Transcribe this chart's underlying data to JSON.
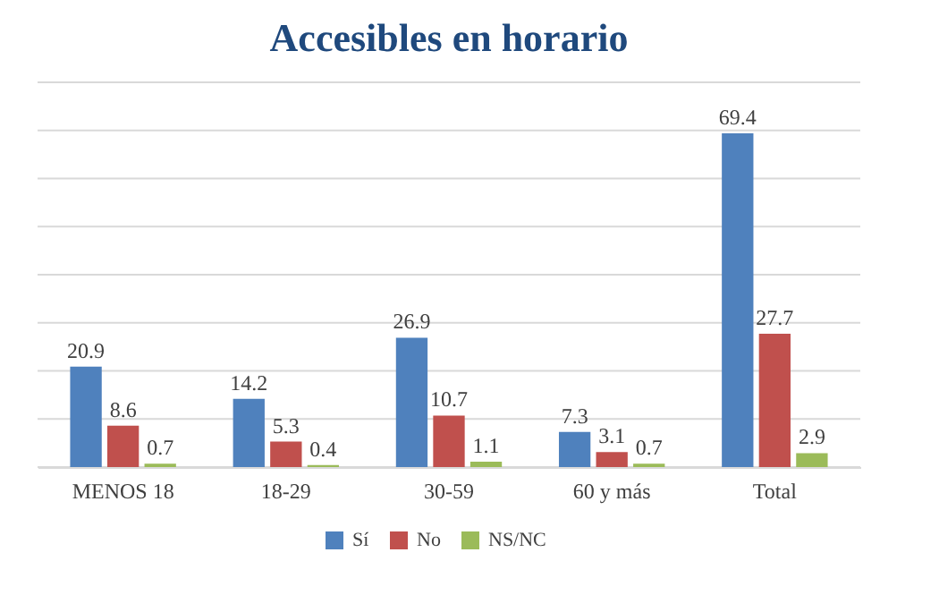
{
  "chart_data": {
    "type": "bar",
    "title": "Accesibles en horario",
    "categories": [
      "MENOS 18",
      "18-29",
      "30-59",
      "60 y más",
      "Total"
    ],
    "series": [
      {
        "name": "Sí",
        "color": "#4f81bd",
        "values": [
          20.9,
          14.2,
          26.9,
          7.3,
          69.4
        ]
      },
      {
        "name": "No",
        "color": "#c0504d",
        "values": [
          8.6,
          5.3,
          10.7,
          3.1,
          27.7
        ]
      },
      {
        "name": "NS/NC",
        "color": "#9bbb59",
        "values": [
          0.7,
          0.4,
          1.1,
          0.7,
          2.9
        ]
      }
    ],
    "ylim": [
      0,
      80
    ],
    "yticks": [
      0,
      {
        "value": 10,
        "label": null
      },
      {
        "value": 20,
        "label": null
      },
      {
        "value": 30,
        "label": null
      },
      {
        "value": 40,
        "label": null
      },
      {
        "value": 50,
        "label": null
      },
      {
        "value": 60,
        "label": null
      },
      {
        "value": 70,
        "label": null
      },
      {
        "value": 80,
        "label": null
      }
    ],
    "grid": "y",
    "tick_labels": "x",
    "legend": "bottom",
    "data_labels": true
  }
}
